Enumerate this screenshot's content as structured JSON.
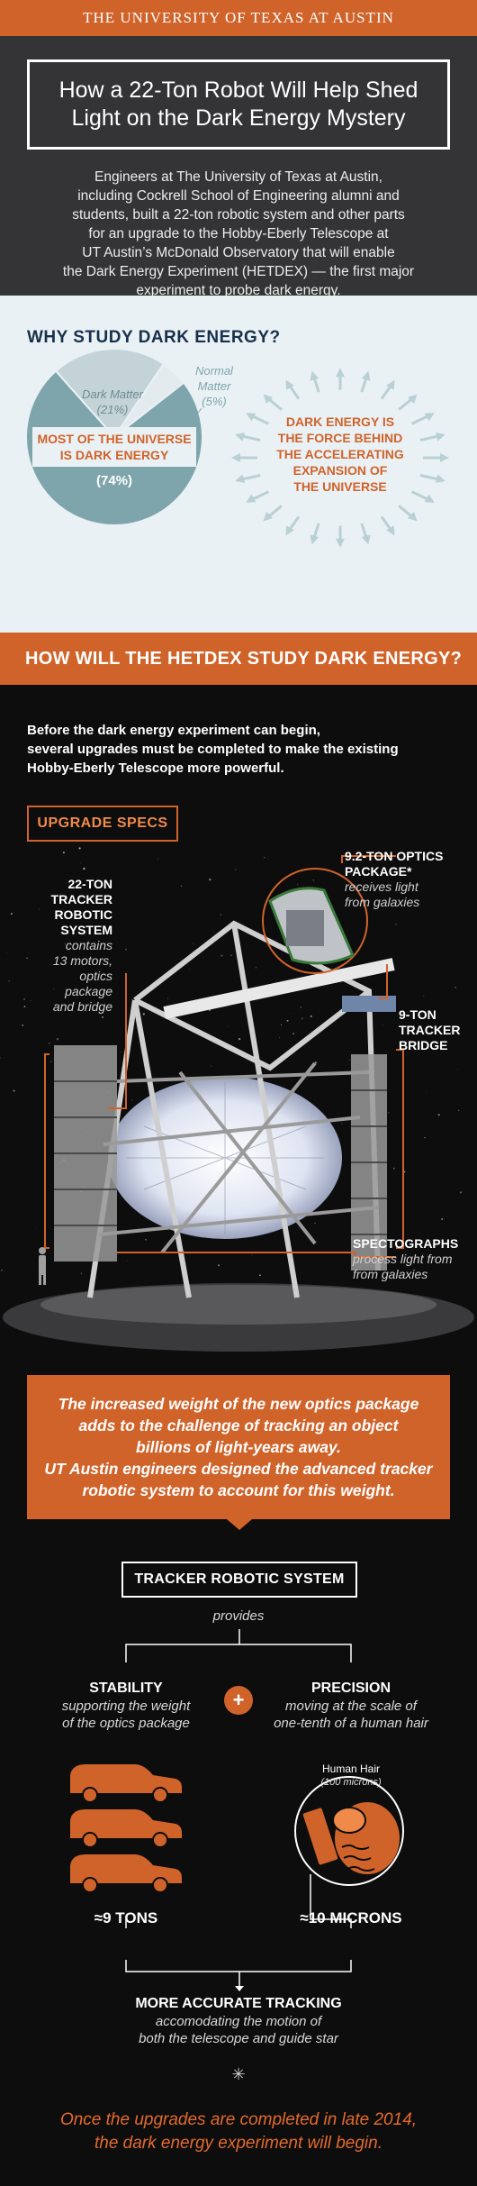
{
  "header": {
    "university": "THE UNIVERSITY OF TEXAS AT AUSTIN"
  },
  "hero": {
    "title_line1": "How a 22-Ton Robot Will Help Shed",
    "title_line2": "Light on the Dark Energy Mystery",
    "body": [
      "Engineers at The University of Texas at Austin,",
      "including Cockrell School of Engineering alumni and",
      "students, built a 22-ton robotic system and other parts",
      "for an upgrade to the Hobby-Eberly Telescope at",
      "UT Austin’s McDonald Observatory that will enable",
      "the Dark Energy Experiment (HETDEX) — the first major",
      "experiment to probe dark energy."
    ]
  },
  "why": {
    "title": "WHY STUDY DARK ENERGY?",
    "pie": {
      "dark_matter_label": "Dark Matter",
      "dark_matter_pct": "(21%)",
      "normal_matter_label_1": "Normal",
      "normal_matter_label_2": "Matter",
      "normal_matter_pct": "(5%)",
      "dark_energy_label_1": "MOST OF THE UNIVERSE",
      "dark_energy_label_2": "IS DARK ENERGY",
      "dark_energy_pct": "(74%)",
      "values": {
        "dark_energy": 74,
        "dark_matter": 21,
        "normal_matter": 5
      },
      "colors": {
        "dark_energy": "#7ea5ac",
        "dark_matter": "#c3d3d8",
        "normal_matter": "#e3ebee"
      }
    },
    "force_text": [
      "DARK ENERGY IS",
      "THE FORCE BEHIND",
      "THE ACCELERATING",
      "EXPANSION OF",
      "THE UNIVERSE"
    ]
  },
  "how": {
    "title": "HOW WILL THE HETDEX STUDY DARK ENERGY?",
    "intro": [
      "Before the dark energy experiment can begin,",
      "several upgrades must be completed to make the existing",
      "Hobby-Eberly Telescope more powerful."
    ],
    "specs_label": "UPGRADE SPECS",
    "tracker": {
      "title": [
        "22-TON",
        "TRACKER",
        "ROBOTIC",
        "SYSTEM"
      ],
      "desc": [
        "contains",
        "13 motors,",
        "optics package",
        "and bridge"
      ]
    },
    "optics": {
      "title": [
        "9.2-TON OPTICS",
        "PACKAGE*"
      ],
      "desc": [
        "receives light",
        "from galaxies"
      ]
    },
    "bridge": {
      "title": [
        "9-TON",
        "TRACKER",
        "BRIDGE"
      ]
    },
    "spectro": {
      "title": [
        "SPECTOGRAPHS"
      ],
      "desc": [
        "process light from",
        "from galaxies"
      ]
    }
  },
  "callout": {
    "lines": [
      "The increased weight of the new optics package",
      "adds to the challenge of tracking an object",
      "billions of light-years away.",
      "UT Austin engineers designed the advanced tracker",
      "robotic system to account for this weight."
    ]
  },
  "system": {
    "title": "TRACKER ROBOTIC SYSTEM",
    "provides": "provides",
    "plus": "+",
    "stability": {
      "title": "STABILITY",
      "desc": [
        "supporting the weight",
        "of the optics package"
      ],
      "value": "≈9 TONS"
    },
    "precision": {
      "title": "PRECISION",
      "desc": [
        "moving at the scale of",
        "one-tenth of a human hair"
      ],
      "value": "≈10 MICRONS"
    },
    "hair": {
      "label": "Human Hair",
      "sub": "(100 microns)"
    },
    "result": {
      "title": "MORE ACCURATE TRACKING",
      "desc": [
        "accomodating the motion of",
        "both the telescope and guide star"
      ]
    }
  },
  "final": {
    "lines": [
      "Once the upgrades are completed in late 2014,",
      "the dark energy experiment will begin."
    ]
  }
}
